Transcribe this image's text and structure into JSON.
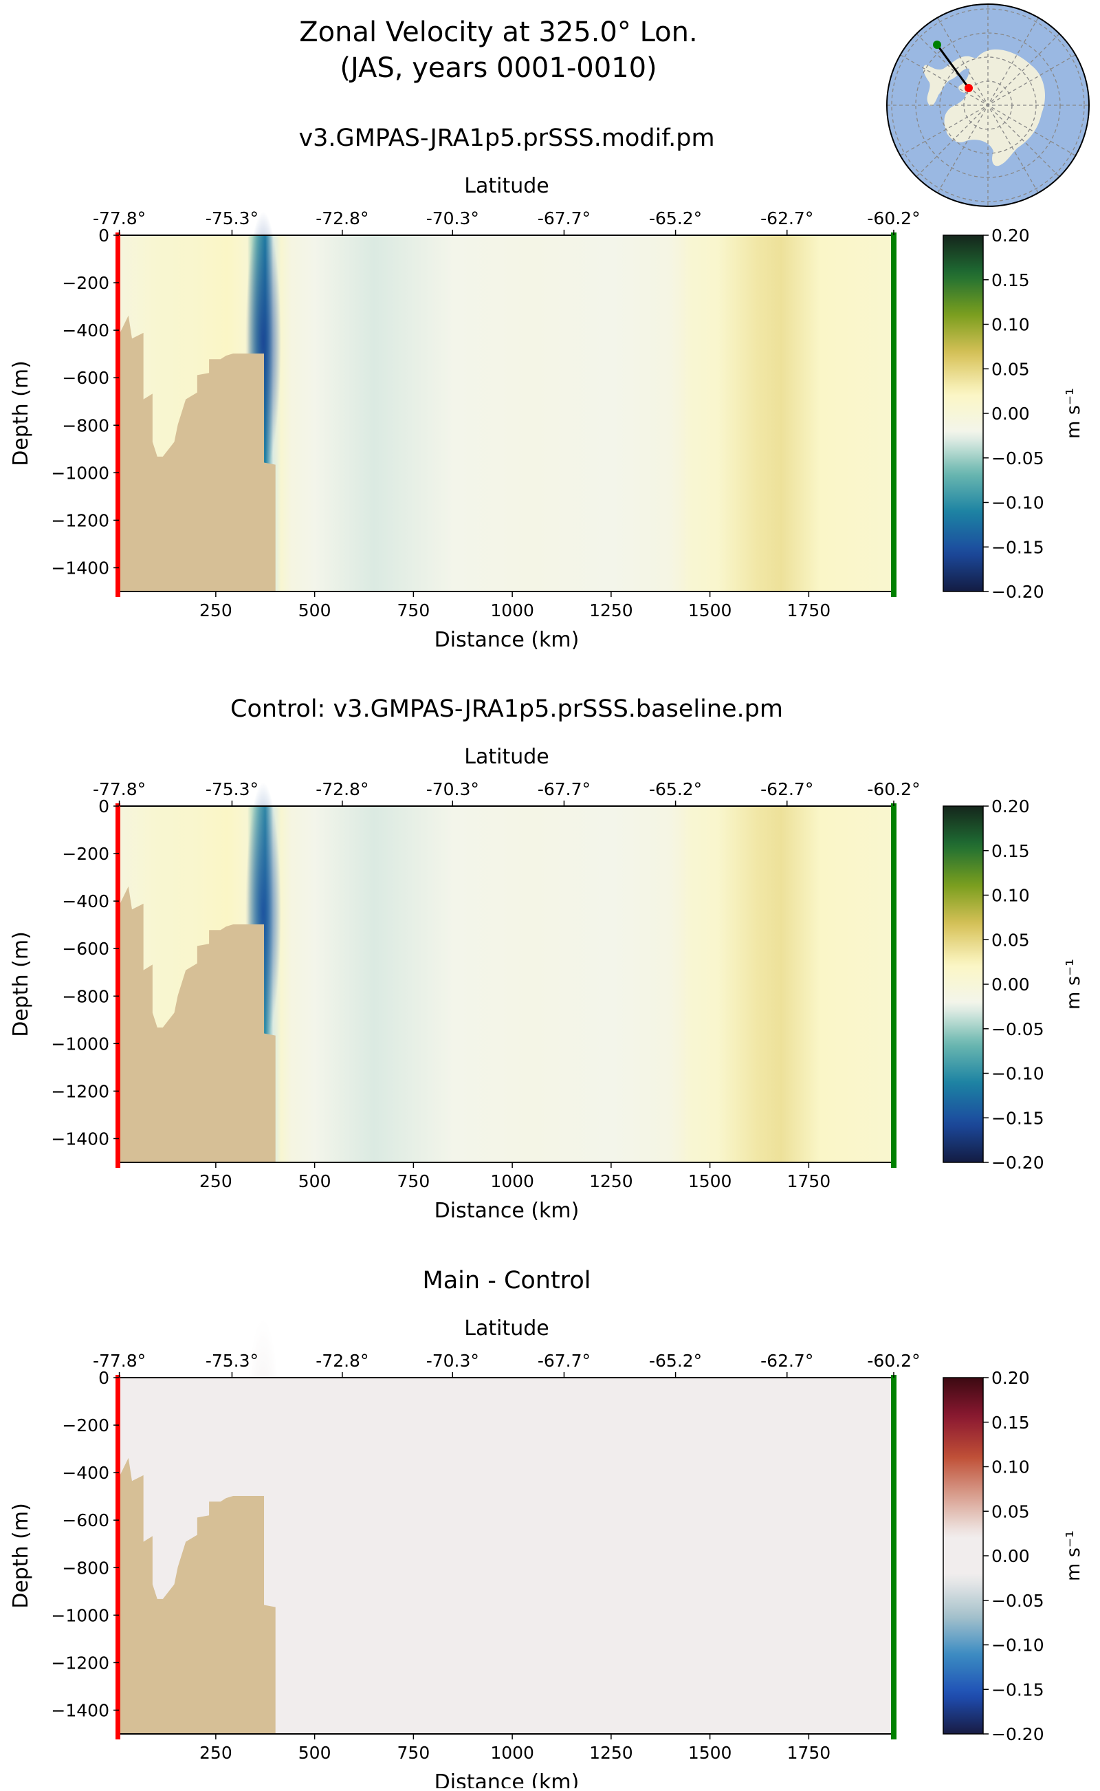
{
  "figure": {
    "title_line1": "Zonal Velocity at 325.0° Lon.",
    "title_line2": "(JAS, years 0001-0010)"
  },
  "chart_data": [
    {
      "type": "heatmap",
      "title": "v3.GMPAS-JRA1p5.prSSS.modif.pm",
      "xlabel": "Distance (km)",
      "ylabel": "Depth (m)",
      "top_xlabel": "Latitude",
      "colorbar_label": "m s⁻¹",
      "colormap": "delta",
      "xlim": [
        5,
        1965
      ],
      "ylim": [
        -1500,
        0
      ],
      "clim": [
        -0.2,
        0.2
      ],
      "xticks": [
        250,
        500,
        750,
        1000,
        1250,
        1500,
        1750
      ],
      "xtick_labels": [
        "250",
        "500",
        "750",
        "1000",
        "1250",
        "1500",
        "1750"
      ],
      "yticks": [
        0,
        -200,
        -400,
        -600,
        -800,
        -1000,
        -1200,
        -1400
      ],
      "ytick_labels": [
        "0",
        "−200",
        "−400",
        "−600",
        "−800",
        "−1000",
        "−1200",
        "−1400"
      ],
      "lat_tick_distances": [
        6,
        291,
        570,
        849,
        1131,
        1413,
        1695,
        1965
      ],
      "lat_tick_labels": [
        "-77.8°",
        "-75.3°",
        "-72.8°",
        "-70.3°",
        "-67.7°",
        "-65.2°",
        "-62.7°",
        "-60.2°"
      ],
      "cbar_ticks": [
        0.2,
        0.15,
        0.1,
        0.05,
        0,
        -0.05,
        -0.1,
        -0.15,
        -0.2
      ],
      "cbar_tick_labels": [
        "0.20",
        "0.15",
        "0.10",
        "0.05",
        "0.00",
        "−0.05",
        "−0.10",
        "−0.15",
        "−0.20"
      ],
      "velocity_profile": {
        "distance": [
          5,
          100,
          200,
          280,
          330,
          355,
          375,
          395,
          415,
          440,
          500,
          650,
          850,
          1050,
          1250,
          1400,
          1430,
          1450,
          1520,
          1620,
          1680,
          1780,
          1965
        ],
        "value": [
          -0.005,
          0.008,
          0.012,
          0.02,
          0.006,
          -0.07,
          -0.11,
          -0.03,
          0.008,
          -0.01,
          -0.02,
          -0.03,
          -0.02,
          -0.015,
          -0.02,
          -0.012,
          -0.002,
          0.006,
          0.012,
          0.035,
          0.04,
          0.018,
          0.01
        ]
      },
      "jet_core": {
        "distance": 370,
        "depth": -450,
        "value": -0.16
      },
      "bathymetry": {
        "distance": [
          5,
          5,
          29,
          38,
          67,
          67,
          90,
          90,
          102,
          116,
          145,
          154,
          174,
          203,
          203,
          233,
          233,
          262,
          276,
          294,
          372,
          372,
          401,
          401
        ],
        "depth": [
          -1500,
          -420,
          -338,
          -435,
          -411,
          -691,
          -667,
          -870,
          -932,
          -932,
          -870,
          -797,
          -691,
          -662,
          -589,
          -580,
          -522,
          -522,
          -507,
          -498,
          -498,
          -957,
          -966,
          -1500
        ]
      }
    },
    {
      "type": "heatmap",
      "title": "Control: v3.GMPAS-JRA1p5.prSSS.baseline.pm",
      "xlabel": "Distance (km)",
      "ylabel": "Depth (m)",
      "top_xlabel": "Latitude",
      "colorbar_label": "m s⁻¹",
      "colormap": "delta",
      "xlim": [
        5,
        1965
      ],
      "ylim": [
        -1500,
        0
      ],
      "clim": [
        -0.2,
        0.2
      ],
      "xticks": [
        250,
        500,
        750,
        1000,
        1250,
        1500,
        1750
      ],
      "xtick_labels": [
        "250",
        "500",
        "750",
        "1000",
        "1250",
        "1500",
        "1750"
      ],
      "yticks": [
        0,
        -200,
        -400,
        -600,
        -800,
        -1000,
        -1200,
        -1400
      ],
      "ytick_labels": [
        "0",
        "−200",
        "−400",
        "−600",
        "−800",
        "−1000",
        "−1200",
        "−1400"
      ],
      "lat_tick_distances": [
        6,
        291,
        570,
        849,
        1131,
        1413,
        1695,
        1965
      ],
      "lat_tick_labels": [
        "-77.8°",
        "-75.3°",
        "-72.8°",
        "-70.3°",
        "-67.7°",
        "-65.2°",
        "-62.7°",
        "-60.2°"
      ],
      "cbar_ticks": [
        0.2,
        0.15,
        0.1,
        0.05,
        0,
        -0.05,
        -0.1,
        -0.15,
        -0.2
      ],
      "cbar_tick_labels": [
        "0.20",
        "0.15",
        "0.10",
        "0.05",
        "0.00",
        "−0.05",
        "−0.10",
        "−0.15",
        "−0.20"
      ],
      "velocity_profile": {
        "distance": [
          5,
          100,
          200,
          280,
          330,
          355,
          375,
          395,
          415,
          440,
          500,
          650,
          850,
          1050,
          1250,
          1400,
          1430,
          1450,
          1520,
          1620,
          1680,
          1780,
          1965
        ],
        "value": [
          -0.005,
          0.008,
          0.012,
          0.02,
          0.006,
          -0.06,
          -0.1,
          -0.03,
          0.008,
          -0.01,
          -0.02,
          -0.03,
          -0.02,
          -0.015,
          -0.02,
          -0.012,
          -0.002,
          0.006,
          0.012,
          0.035,
          0.04,
          0.018,
          0.01
        ]
      },
      "jet_core": {
        "distance": 370,
        "depth": -450,
        "value": -0.15
      },
      "bathymetry": {
        "distance": [
          5,
          5,
          29,
          38,
          67,
          67,
          90,
          90,
          102,
          116,
          145,
          154,
          174,
          203,
          203,
          233,
          233,
          262,
          276,
          294,
          372,
          372,
          401,
          401
        ],
        "depth": [
          -1500,
          -420,
          -338,
          -435,
          -411,
          -691,
          -667,
          -870,
          -932,
          -932,
          -870,
          -797,
          -691,
          -662,
          -589,
          -580,
          -522,
          -522,
          -507,
          -498,
          -498,
          -957,
          -966,
          -1500
        ]
      }
    },
    {
      "type": "heatmap",
      "title": "Main - Control",
      "xlabel": "Distance (km)",
      "ylabel": "Depth (m)",
      "top_xlabel": "Latitude",
      "colorbar_label": "m s⁻¹",
      "colormap": "balance",
      "xlim": [
        5,
        1965
      ],
      "ylim": [
        -1500,
        0
      ],
      "clim": [
        -0.2,
        0.2
      ],
      "xticks": [
        250,
        500,
        750,
        1000,
        1250,
        1500,
        1750
      ],
      "xtick_labels": [
        "250",
        "500",
        "750",
        "1000",
        "1250",
        "1500",
        "1750"
      ],
      "yticks": [
        0,
        -200,
        -400,
        -600,
        -800,
        -1000,
        -1200,
        -1400
      ],
      "ytick_labels": [
        "0",
        "−200",
        "−400",
        "−600",
        "−800",
        "−1000",
        "−1200",
        "−1400"
      ],
      "lat_tick_distances": [
        6,
        291,
        570,
        849,
        1131,
        1413,
        1695,
        1965
      ],
      "lat_tick_labels": [
        "-77.8°",
        "-75.3°",
        "-72.8°",
        "-70.3°",
        "-67.7°",
        "-65.2°",
        "-62.7°",
        "-60.2°"
      ],
      "cbar_ticks": [
        0.2,
        0.15,
        0.1,
        0.05,
        0,
        -0.05,
        -0.1,
        -0.15,
        -0.2
      ],
      "cbar_tick_labels": [
        "0.20",
        "0.15",
        "0.10",
        "0.05",
        "0.00",
        "−0.05",
        "−0.10",
        "−0.15",
        "−0.20"
      ],
      "velocity_profile": {
        "distance": [
          5,
          300,
          350,
          370,
          390,
          430,
          1965
        ],
        "value": [
          0.002,
          0.004,
          -0.006,
          -0.018,
          -0.006,
          0.004,
          0.003
        ]
      },
      "jet_core": {
        "distance": 370,
        "depth": -300,
        "value": -0.02
      },
      "bathymetry": {
        "distance": [
          5,
          5,
          29,
          38,
          67,
          67,
          90,
          90,
          102,
          116,
          145,
          154,
          174,
          203,
          203,
          233,
          233,
          262,
          276,
          294,
          372,
          372,
          401,
          401
        ],
        "depth": [
          -1500,
          -420,
          -338,
          -435,
          -411,
          -691,
          -667,
          -870,
          -932,
          -932,
          -870,
          -797,
          -691,
          -662,
          -589,
          -580,
          -522,
          -522,
          -507,
          -498,
          -498,
          -957,
          -966,
          -1500
        ]
      }
    }
  ],
  "colors": {
    "land": "#d6bf96",
    "start_marker": "#ff0000",
    "end_marker": "#008000",
    "map_ocean": "#9ab8e2",
    "map_land": "#efeedc",
    "delta": [
      "#131c42",
      "#1c4a9e",
      "#1c82a3",
      "#6cb8b0",
      "#f3f5ec",
      "#fbf6c4",
      "#d8c25a",
      "#7a9e1e",
      "#1f6f33",
      "#15261c"
    ],
    "balance": [
      "#181c43",
      "#1f4fb5",
      "#3b8bc2",
      "#a8c3cc",
      "#f1eded",
      "#f1eded",
      "#d9a191",
      "#bf4f36",
      "#8c1931",
      "#3c0912"
    ]
  }
}
